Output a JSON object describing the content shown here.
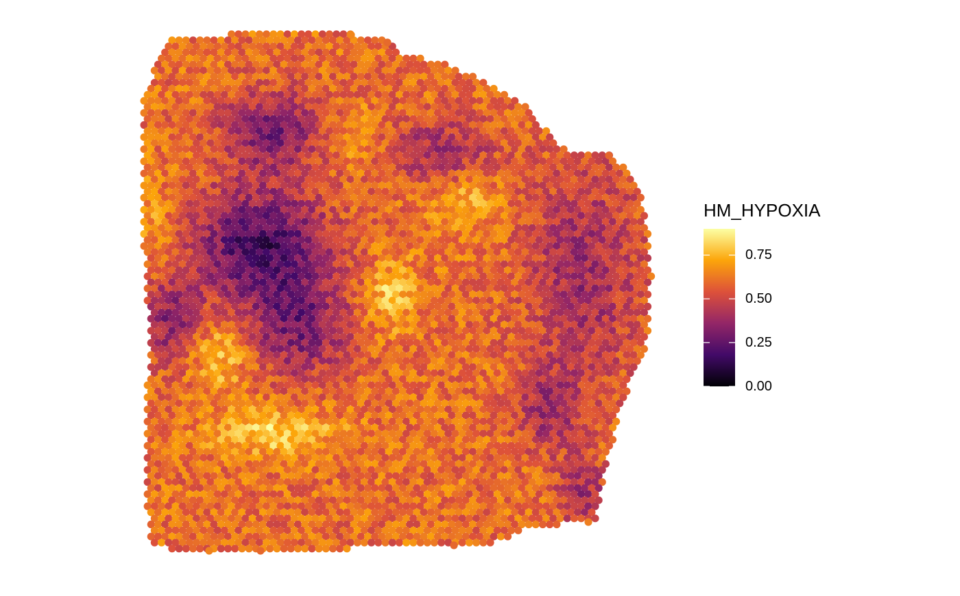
{
  "chart_data": {
    "type": "scatter",
    "subtype": "spatial-spot-map",
    "title": "",
    "xlabel": "",
    "ylabel": "",
    "grid": false,
    "legend_placement": "right",
    "colorbar": {
      "title": "HM_HYPOXIA",
      "palette": "inferno",
      "range": [
        0,
        0.9
      ],
      "ticks": [
        0.0,
        0.25,
        0.5,
        0.75
      ],
      "tick_labels": [
        "0.00",
        "0.25",
        "0.50",
        "0.75"
      ],
      "colors": [
        "#000004",
        "#420a68",
        "#932667",
        "#dd513a",
        "#fca50a",
        "#fcffa4"
      ]
    },
    "value_summary": {
      "min": 0.0,
      "max": 0.9,
      "regions": [
        {
          "label": "upper-left low-hypoxia core",
          "approx_value": 0.2
        },
        {
          "label": "right-side mixed region",
          "approx_value": 0.4
        },
        {
          "label": "surrounding tissue",
          "approx_value": 0.6
        },
        {
          "label": "bright rim around core",
          "approx_value": 0.8
        }
      ]
    }
  }
}
